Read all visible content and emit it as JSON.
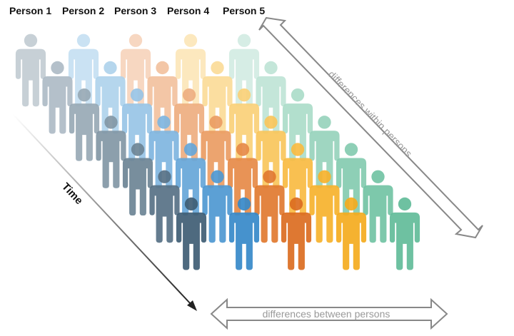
{
  "persons": [
    {
      "label": "Person 1",
      "palette": [
        "#c2ccd3",
        "#aebbc5",
        "#98a9b5",
        "#8297a5",
        "#6c8495",
        "#577185",
        "#3f5d74"
      ]
    },
    {
      "label": "Person 2",
      "palette": [
        "#c6dff2",
        "#afd2ec",
        "#98c4e6",
        "#7fb5df",
        "#66a6d8",
        "#4e98d1",
        "#3689c9"
      ]
    },
    {
      "label": "Person 3",
      "palette": [
        "#f6d4bc",
        "#f2c19e",
        "#eeae80",
        "#ea9c63",
        "#e68a48",
        "#e17a30",
        "#db6d21"
      ]
    },
    {
      "label": "Person 4",
      "palette": [
        "#fce6b8",
        "#fbdb98",
        "#fad078",
        "#f9c55b",
        "#f8bb42",
        "#f6b22d",
        "#f4ab1e"
      ]
    },
    {
      "label": "Person 5",
      "palette": [
        "#d3ece3",
        "#bfe4d6",
        "#abdcc9",
        "#97d3bc",
        "#84cbb0",
        "#72c3a4",
        "#62bc99"
      ]
    }
  ],
  "labels": {
    "time": "Time",
    "within": "differences within persons",
    "between": "differences between persons"
  },
  "colors": {
    "arrow_stroke": "#888888",
    "caption_text": "#999999",
    "time_arrow": "#222222"
  }
}
